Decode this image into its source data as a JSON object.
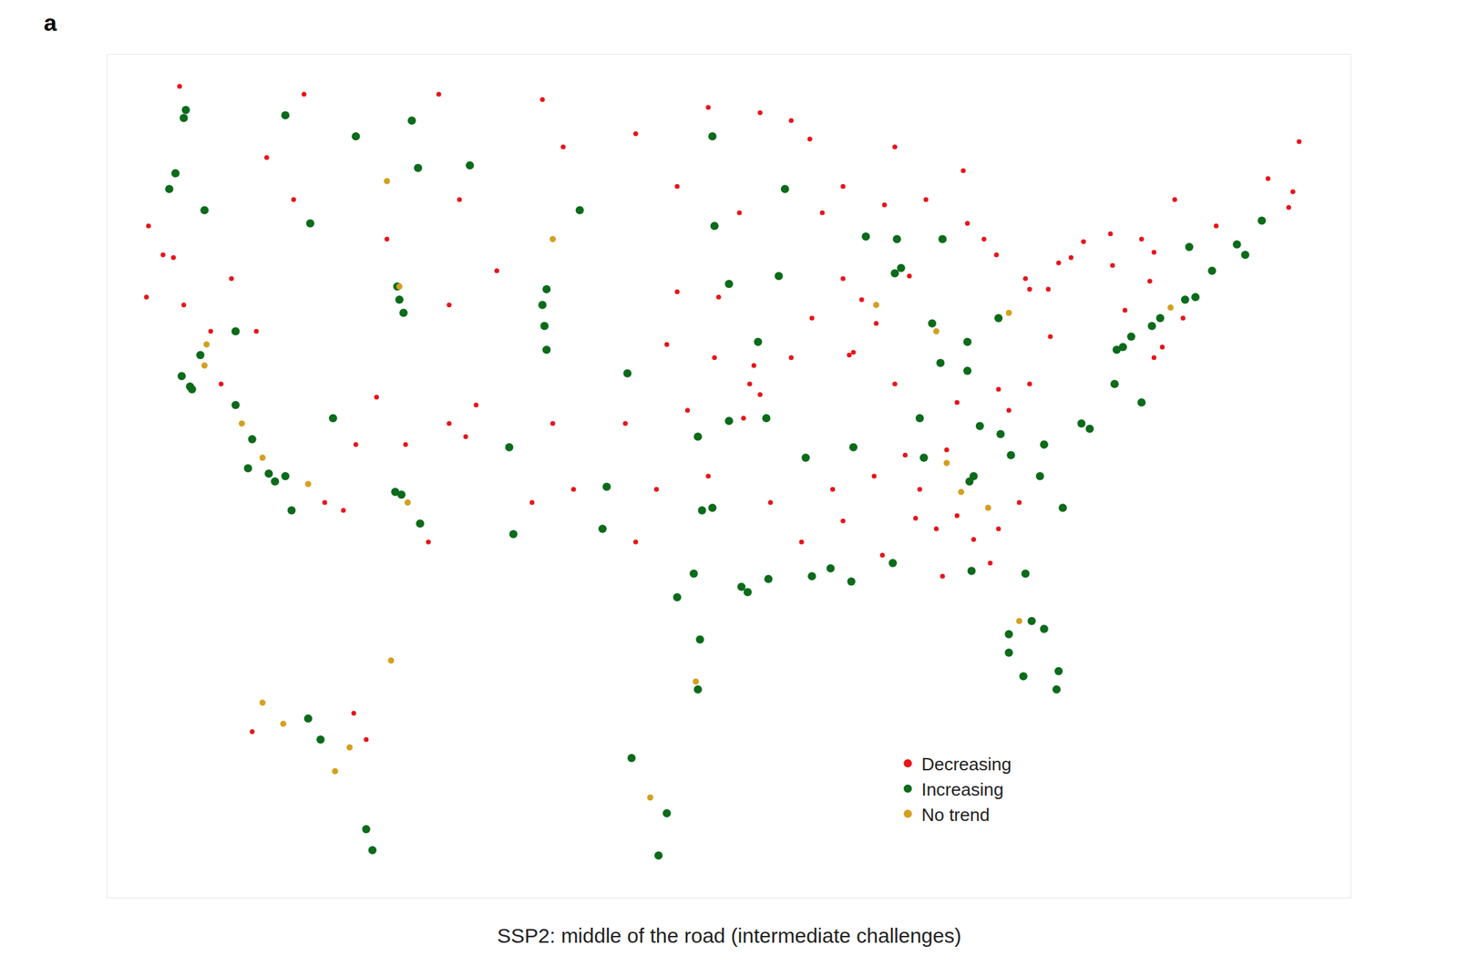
{
  "chart_data": {
    "type": "scatter",
    "title": "a",
    "caption": "SSP2: middle of the road (intermediate challenges)",
    "xlim": [
      -126,
      -66
    ],
    "ylim": [
      18,
      50
    ],
    "tick_labels": false,
    "grid": false,
    "legend": "lower right",
    "series": [
      {
        "name": "Decreasing",
        "color": "#e8141b",
        "points": [
          [
            -81.7,
            41.5
          ],
          [
            -81.5,
            41.1
          ],
          [
            -78.9,
            42.9
          ],
          [
            -77.6,
            43.2
          ],
          [
            -76.1,
            43.0
          ],
          [
            -83.1,
            42.4
          ],
          [
            -83.7,
            43.0
          ],
          [
            -84.5,
            43.6
          ],
          [
            -90.2,
            38.6
          ],
          [
            -90.0,
            38.7
          ],
          [
            -80.6,
            41.1
          ],
          [
            -80.1,
            42.1
          ],
          [
            -75.7,
            41.4
          ],
          [
            -76.9,
            40.3
          ],
          [
            -87.3,
            41.6
          ],
          [
            -92.1,
            46.8
          ],
          [
            -93.0,
            47.5
          ],
          [
            -94.5,
            47.8
          ],
          [
            -88.0,
            46.5
          ],
          [
            -86.8,
            33.5
          ],
          [
            -85.0,
            32.5
          ],
          [
            -84.2,
            31.6
          ],
          [
            -83.4,
            30.7
          ],
          [
            -85.7,
            30.2
          ],
          [
            -87.0,
            32.4
          ],
          [
            -95.3,
            36.2
          ],
          [
            -94.5,
            37.1
          ],
          [
            -95.0,
            37.5
          ],
          [
            -89.6,
            40.7
          ],
          [
            -88.9,
            39.8
          ],
          [
            -74.1,
            40.0
          ],
          [
            -75.5,
            38.5
          ],
          [
            -75.1,
            38.9
          ],
          [
            -122.3,
            40.5
          ],
          [
            -124.1,
            40.8
          ],
          [
            -118.8,
            39.5
          ],
          [
            -111.6,
            35.2
          ],
          [
            -114.0,
            35.2
          ],
          [
            -114.6,
            32.7
          ],
          [
            -110.5,
            31.5
          ],
          [
            -108.2,
            36.7
          ],
          [
            -108.7,
            35.5
          ],
          [
            -109.5,
            36.0
          ],
          [
            -122.8,
            42.3
          ],
          [
            -123.3,
            42.4
          ],
          [
            -118.3,
            46.1
          ],
          [
            -107.2,
            41.8
          ],
          [
            -68.5,
            46.7
          ],
          [
            -68.8,
            44.8
          ],
          [
            -69.0,
            44.2
          ],
          [
            -70.0,
            45.3
          ],
          [
            -72.5,
            43.5
          ],
          [
            -74.5,
            44.5
          ],
          [
            -75.5,
            42.5
          ],
          [
            -77.5,
            42.0
          ],
          [
            -79.5,
            42.3
          ],
          [
            -91.5,
            44.0
          ],
          [
            -90.5,
            45.0
          ],
          [
            -86.5,
            44.5
          ],
          [
            -84.7,
            45.6
          ],
          [
            -88.5,
            44.3
          ],
          [
            -96.5,
            40.8
          ],
          [
            -98.5,
            41.0
          ],
          [
            -99.0,
            39.0
          ],
          [
            -96.7,
            38.5
          ],
          [
            -94.8,
            38.2
          ],
          [
            -93.0,
            38.5
          ],
          [
            -92.0,
            40.0
          ],
          [
            -90.5,
            41.5
          ],
          [
            -88.0,
            37.5
          ],
          [
            -85.0,
            36.8
          ],
          [
            -83.0,
            37.3
          ],
          [
            -81.5,
            37.5
          ],
          [
            -80.5,
            39.3
          ],
          [
            -82.5,
            36.5
          ],
          [
            -89.0,
            34.0
          ],
          [
            -90.5,
            32.3
          ],
          [
            -91.0,
            33.5
          ],
          [
            -92.5,
            31.5
          ],
          [
            -94.0,
            33.0
          ],
          [
            -88.6,
            31.0
          ],
          [
            -83.0,
            32.0
          ],
          [
            -82.0,
            33.0
          ],
          [
            -86.0,
            32.0
          ],
          [
            -87.5,
            34.8
          ],
          [
            -85.5,
            35.0
          ],
          [
            -97.0,
            34.0
          ],
          [
            -98.0,
            36.5
          ],
          [
            -101.0,
            36.0
          ],
          [
            -103.5,
            33.5
          ],
          [
            -104.5,
            36.0
          ],
          [
            -105.5,
            33.0
          ],
          [
            -100.5,
            31.5
          ],
          [
            -99.5,
            33.5
          ],
          [
            -113.0,
            37.0
          ],
          [
            -115.5,
            33.0
          ],
          [
            -120.5,
            37.5
          ],
          [
            -121.0,
            39.5
          ],
          [
            -120.0,
            41.5
          ],
          [
            -124.0,
            43.5
          ],
          [
            -117.0,
            44.5
          ],
          [
            -112.5,
            43.0
          ],
          [
            -109.5,
            40.5
          ],
          [
            -109.0,
            44.5
          ],
          [
            -104.0,
            46.5
          ],
          [
            -100.5,
            47.0
          ],
          [
            -98.5,
            45.0
          ],
          [
            -95.5,
            44.0
          ],
          [
            -97.0,
            48.0
          ],
          [
            -105.0,
            48.3
          ],
          [
            -110.0,
            48.5
          ],
          [
            -116.5,
            48.5
          ],
          [
            -122.5,
            48.8
          ],
          [
            -114.1,
            25.0
          ],
          [
            -119.0,
            24.3
          ],
          [
            -113.5,
            24.0
          ]
        ]
      },
      {
        "name": "Increasing",
        "color": "#0b6b1a",
        "points": [
          [
            -122.3,
            47.6
          ],
          [
            -122.2,
            47.9
          ],
          [
            -122.7,
            45.5
          ],
          [
            -117.4,
            47.7
          ],
          [
            -116.2,
            43.6
          ],
          [
            -111.3,
            47.5
          ],
          [
            -111.0,
            45.7
          ],
          [
            -108.5,
            45.8
          ],
          [
            -112.0,
            41.2
          ],
          [
            -111.9,
            40.7
          ],
          [
            -111.7,
            40.2
          ],
          [
            -104.9,
            39.7
          ],
          [
            -105.0,
            40.5
          ],
          [
            -104.8,
            38.8
          ],
          [
            -104.8,
            41.1
          ],
          [
            -106.6,
            35.1
          ],
          [
            -112.1,
            33.4
          ],
          [
            -111.8,
            33.3
          ],
          [
            -110.9,
            32.2
          ],
          [
            -115.1,
            36.2
          ],
          [
            -118.2,
            34.1
          ],
          [
            -117.9,
            33.8
          ],
          [
            -117.4,
            34.0
          ],
          [
            -117.1,
            32.7
          ],
          [
            -119.2,
            34.3
          ],
          [
            -122.4,
            37.8
          ],
          [
            -122.0,
            37.4
          ],
          [
            -121.9,
            37.3
          ],
          [
            -121.5,
            38.6
          ],
          [
            -119.8,
            36.7
          ],
          [
            -119.0,
            35.4
          ],
          [
            -119.8,
            39.5
          ],
          [
            -121.3,
            44.1
          ],
          [
            -123.0,
            44.9
          ],
          [
            -96.8,
            32.8
          ],
          [
            -97.3,
            32.7
          ],
          [
            -97.7,
            30.3
          ],
          [
            -98.5,
            29.4
          ],
          [
            -95.4,
            29.8
          ],
          [
            -95.1,
            29.6
          ],
          [
            -97.5,
            35.5
          ],
          [
            -96.0,
            36.1
          ],
          [
            -94.6,
            39.1
          ],
          [
            -96.0,
            41.3
          ],
          [
            -93.3,
            44.9
          ],
          [
            -93.6,
            41.6
          ],
          [
            -87.7,
            41.9
          ],
          [
            -88.0,
            41.7
          ],
          [
            -86.2,
            39.8
          ],
          [
            -83.0,
            40.0
          ],
          [
            -86.8,
            36.2
          ],
          [
            -84.4,
            33.8
          ],
          [
            -84.2,
            34.0
          ],
          [
            -80.8,
            35.2
          ],
          [
            -78.6,
            35.8
          ],
          [
            -79.0,
            36.0
          ],
          [
            -77.0,
            38.9
          ],
          [
            -77.3,
            38.8
          ],
          [
            -77.4,
            37.5
          ],
          [
            -76.1,
            36.8
          ],
          [
            -75.2,
            40.0
          ],
          [
            -74.0,
            40.7
          ],
          [
            -73.5,
            40.8
          ],
          [
            -71.1,
            42.4
          ],
          [
            -71.5,
            42.8
          ],
          [
            -81.7,
            30.3
          ],
          [
            -81.4,
            28.5
          ],
          [
            -82.5,
            28.0
          ],
          [
            -82.5,
            27.3
          ],
          [
            -80.2,
            25.9
          ],
          [
            -80.1,
            26.6
          ],
          [
            -81.8,
            26.4
          ],
          [
            -79.9,
            32.8
          ],
          [
            -82.4,
            34.8
          ],
          [
            -83.9,
            35.9
          ],
          [
            -85.8,
            38.3
          ],
          [
            -84.5,
            38.0
          ],
          [
            -89.4,
            43.1
          ],
          [
            -85.7,
            43.0
          ],
          [
            -86.6,
            34.7
          ],
          [
            -92.3,
            34.7
          ],
          [
            -94.2,
            36.2
          ],
          [
            -91.1,
            30.5
          ],
          [
            -90.1,
            30.0
          ],
          [
            -88.1,
            30.7
          ],
          [
            -97.4,
            27.8
          ],
          [
            -97.5,
            25.9
          ],
          [
            -96.8,
            46.9
          ],
          [
            -96.7,
            43.5
          ],
          [
            -103.2,
            44.1
          ],
          [
            -101.9,
            33.6
          ],
          [
            -102.1,
            32.0
          ],
          [
            -106.4,
            31.8
          ],
          [
            -100.9,
            37.9
          ],
          [
            -73.8,
            42.7
          ],
          [
            -70.3,
            43.7
          ],
          [
            -72.7,
            41.8
          ],
          [
            -84.5,
            39.1
          ],
          [
            -90.0,
            35.1
          ],
          [
            -87.9,
            43.0
          ],
          [
            -82.9,
            35.6
          ],
          [
            -76.6,
            39.3
          ],
          [
            -75.6,
            39.7
          ],
          [
            -81.0,
            34.0
          ],
          [
            -80.8,
            28.2
          ],
          [
            -84.3,
            30.4
          ],
          [
            -94.1,
            30.1
          ],
          [
            -92.0,
            30.2
          ],
          [
            -114.0,
            46.9
          ],
          [
            -115.7,
            24.0
          ],
          [
            -116.3,
            24.8
          ],
          [
            -113.5,
            20.6
          ],
          [
            -113.2,
            19.8
          ],
          [
            -100.7,
            23.3
          ],
          [
            -99.4,
            19.6
          ],
          [
            -99.0,
            21.2
          ]
        ]
      },
      {
        "name": "No trend",
        "color": "#d4a020",
        "points": [
          [
            -118.5,
            34.7
          ],
          [
            -121.3,
            38.2
          ],
          [
            -119.5,
            36.0
          ],
          [
            -97.6,
            26.2
          ],
          [
            -111.5,
            33.0
          ],
          [
            -84.8,
            33.4
          ],
          [
            -83.5,
            32.8
          ],
          [
            -82.0,
            28.5
          ],
          [
            -111.9,
            41.2
          ],
          [
            -88.9,
            40.5
          ],
          [
            -86.0,
            39.5
          ],
          [
            -82.5,
            40.2
          ],
          [
            -74.7,
            40.4
          ],
          [
            -85.5,
            34.5
          ],
          [
            -121.2,
            39.0
          ],
          [
            -116.3,
            33.7
          ],
          [
            -112.5,
            45.2
          ],
          [
            -104.5,
            43.0
          ],
          [
            -114.3,
            23.7
          ],
          [
            -118.5,
            25.4
          ],
          [
            -117.5,
            24.6
          ],
          [
            -112.3,
            27.0
          ],
          [
            -115.0,
            22.8
          ],
          [
            -99.8,
            21.8
          ]
        ]
      }
    ]
  }
}
